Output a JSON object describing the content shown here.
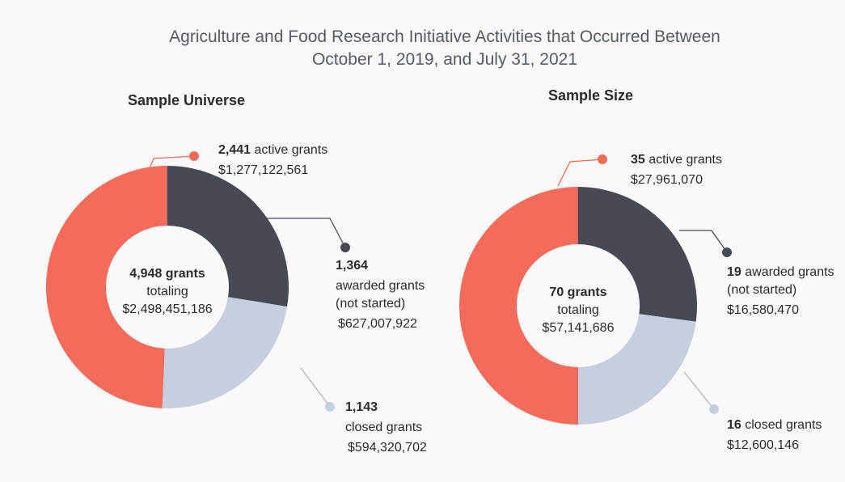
{
  "title": [
    "Agriculture and Food Research Initiative Activities that Occurred Between",
    "October 1, 2019, and July 31, 2021"
  ],
  "chart_data": [
    {
      "type": "donut",
      "title": "Sample Universe",
      "categories": [
        "active grants",
        "awarded grants",
        "closed grants"
      ],
      "category_notes": [
        [],
        [
          "(not started)"
        ],
        []
      ],
      "values": [
        2441,
        1364,
        1143
      ],
      "value_labels": [
        "2,441",
        "1,364",
        "1,143"
      ],
      "amount_labels": [
        "$1,277,122,561",
        "$627,007,922",
        "$594,320,702"
      ],
      "colors": [
        "#f26b5b",
        "#474a55",
        "#c5cfe0"
      ],
      "center": [
        "4,948 grants",
        "totaling",
        "$2,498,451,186"
      ]
    },
    {
      "type": "donut",
      "title": "Sample Size",
      "categories": [
        "active grants",
        "awarded grants",
        "closed grants"
      ],
      "category_notes": [
        [],
        [
          "(not started)"
        ],
        []
      ],
      "values": [
        35,
        19,
        16
      ],
      "amount_labels": [
        "$27,961,070",
        "$16,580,470",
        "$12,600,146"
      ],
      "colors": [
        "#f26b5b",
        "#474a55",
        "#c5cfe0"
      ],
      "center": [
        "70 grants",
        "totaling",
        "$57,141,686"
      ]
    }
  ]
}
